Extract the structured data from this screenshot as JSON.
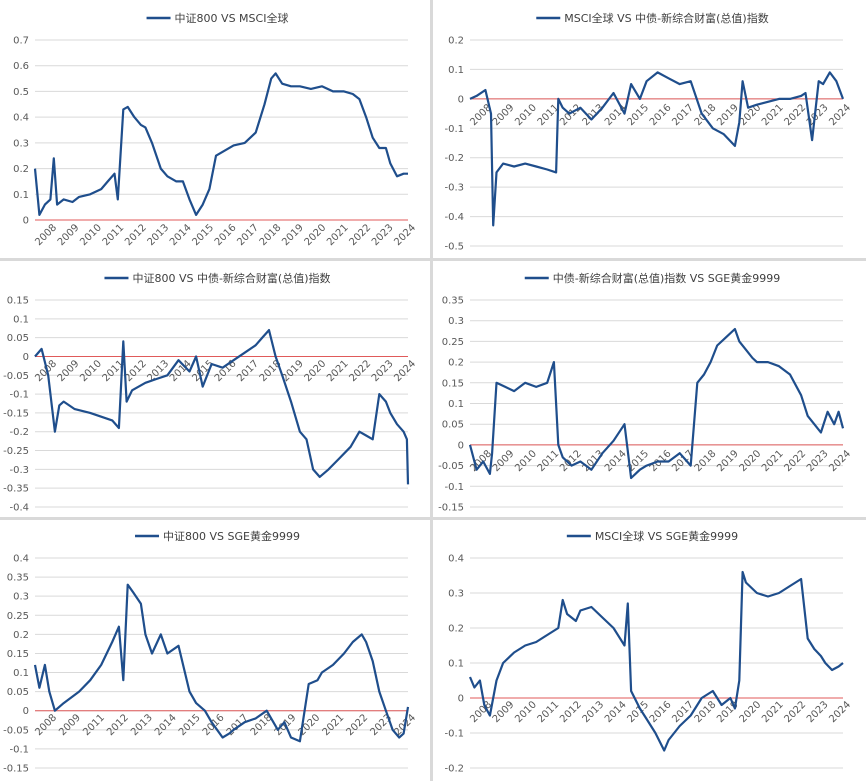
{
  "palette": {
    "series": "#1f4e8c",
    "baseline": "#e05a5a",
    "grid": "#d9d9d9",
    "text": "#595959"
  },
  "chart_data": [
    {
      "type": "line",
      "title": "",
      "legend": "top-center",
      "grid": "horizontal",
      "x_range": [
        2008,
        2024.9
      ],
      "x_ticks": [
        "2008",
        "2009",
        "2010",
        "2011",
        "2012",
        "2013",
        "2014",
        "2015",
        "2016",
        "2017",
        "2018",
        "2019",
        "2020",
        "2021",
        "2022",
        "2023",
        "2024"
      ],
      "ylim": [
        0,
        0.7
      ],
      "y_ticks": [
        "0",
        "0.1",
        "0.2",
        "0.3",
        "0.4",
        "0.5",
        "0.6",
        "0.7"
      ],
      "baseline": 0,
      "series": [
        {
          "name": "中证800 VS MSCI全球",
          "x": [
            2008.0,
            2008.2,
            2008.45,
            2008.7,
            2008.85,
            2009.0,
            2009.3,
            2009.7,
            2010.0,
            2010.5,
            2011.0,
            2011.3,
            2011.6,
            2011.75,
            2012.0,
            2012.2,
            2012.5,
            2012.8,
            2013.0,
            2013.3,
            2013.7,
            2014.0,
            2014.4,
            2014.7,
            2015.0,
            2015.3,
            2015.6,
            2015.9,
            2016.2,
            2016.6,
            2017.0,
            2017.5,
            2018.0,
            2018.4,
            2018.7,
            2018.9,
            2019.2,
            2019.6,
            2020.0,
            2020.5,
            2021.0,
            2021.5,
            2022.0,
            2022.4,
            2022.7,
            2023.0,
            2023.3,
            2023.6,
            2023.9,
            2024.1,
            2024.4,
            2024.7,
            2024.9
          ],
          "y": [
            0.2,
            0.02,
            0.06,
            0.08,
            0.24,
            0.06,
            0.08,
            0.07,
            0.09,
            0.1,
            0.12,
            0.15,
            0.18,
            0.08,
            0.43,
            0.44,
            0.4,
            0.37,
            0.36,
            0.3,
            0.2,
            0.17,
            0.15,
            0.15,
            0.08,
            0.02,
            0.06,
            0.12,
            0.25,
            0.27,
            0.29,
            0.3,
            0.34,
            0.45,
            0.55,
            0.57,
            0.53,
            0.52,
            0.52,
            0.51,
            0.52,
            0.5,
            0.5,
            0.49,
            0.47,
            0.4,
            0.32,
            0.28,
            0.28,
            0.22,
            0.17,
            0.18,
            0.18
          ]
        }
      ]
    },
    {
      "type": "line",
      "title": "",
      "legend": "top-center",
      "grid": "horizontal",
      "x_range": [
        2008,
        2024.9
      ],
      "x_ticks": [
        "2008",
        "2009",
        "2010",
        "2011",
        "2012",
        "2013",
        "2014",
        "2015",
        "2016",
        "2017",
        "2018",
        "2019",
        "2020",
        "2021",
        "2022",
        "2023",
        "2024"
      ],
      "ylim": [
        -0.5,
        0.2
      ],
      "y_ticks": [
        "-0.5",
        "-0.4",
        "-0.3",
        "-0.2",
        "-0.1",
        "0",
        "0.1",
        "0.2"
      ],
      "baseline": 0,
      "series": [
        {
          "name": "MSCI全球 VS 中债-新综合财富(总值)指数",
          "x": [
            2008.0,
            2008.3,
            2008.7,
            2008.95,
            2009.05,
            2009.2,
            2009.5,
            2010.0,
            2010.5,
            2011.0,
            2011.5,
            2011.9,
            2012.0,
            2012.2,
            2012.5,
            2013.0,
            2013.5,
            2014.0,
            2014.5,
            2015.0,
            2015.3,
            2015.7,
            2016.0,
            2016.5,
            2017.0,
            2017.5,
            2018.0,
            2018.5,
            2019.0,
            2019.5,
            2020.0,
            2020.2,
            2020.35,
            2020.6,
            2021.0,
            2021.5,
            2022.0,
            2022.5,
            2023.0,
            2023.2,
            2023.5,
            2023.8,
            2024.0,
            2024.3,
            2024.6,
            2024.9
          ],
          "y": [
            0.0,
            0.01,
            0.03,
            -0.05,
            -0.43,
            -0.25,
            -0.22,
            -0.23,
            -0.22,
            -0.23,
            -0.24,
            -0.25,
            0.0,
            -0.03,
            -0.05,
            -0.03,
            -0.07,
            -0.03,
            0.02,
            -0.05,
            0.05,
            0.0,
            0.06,
            0.09,
            0.07,
            0.05,
            0.06,
            -0.05,
            -0.1,
            -0.12,
            -0.16,
            -0.08,
            0.06,
            -0.03,
            -0.02,
            -0.01,
            0.0,
            0.0,
            0.01,
            0.02,
            -0.14,
            0.06,
            0.05,
            0.09,
            0.06,
            0.0
          ]
        }
      ]
    },
    {
      "type": "line",
      "title": "",
      "legend": "top-center",
      "grid": "horizontal",
      "x_range": [
        2008,
        2024.9
      ],
      "x_ticks": [
        "2008",
        "2009",
        "2010",
        "2011",
        "2012",
        "2013",
        "2014",
        "2015",
        "2016",
        "2017",
        "2018",
        "2019",
        "2020",
        "2021",
        "2022",
        "2023",
        "2024"
      ],
      "ylim": [
        -0.4,
        0.15
      ],
      "y_ticks": [
        "-0.4",
        "-0.35",
        "-0.3",
        "-0.25",
        "-0.2",
        "-0.15",
        "-0.1",
        "-0.05",
        "0",
        "0.05",
        "0.1",
        "0.15"
      ],
      "baseline": 0,
      "series": [
        {
          "name": "中证800 VS 中债-新综合财富(总值)指数",
          "x": [
            2008.0,
            2008.3,
            2008.6,
            2008.9,
            2009.1,
            2009.3,
            2009.8,
            2010.5,
            2011.0,
            2011.5,
            2011.8,
            2012.0,
            2012.15,
            2012.4,
            2013.0,
            2013.5,
            2014.0,
            2014.5,
            2015.0,
            2015.3,
            2015.6,
            2016.0,
            2016.5,
            2017.0,
            2017.5,
            2018.0,
            2018.3,
            2018.6,
            2018.9,
            2019.2,
            2019.6,
            2020.0,
            2020.3,
            2020.6,
            2020.9,
            2021.3,
            2021.8,
            2022.3,
            2022.7,
            2023.0,
            2023.3,
            2023.6,
            2023.9,
            2024.1,
            2024.4,
            2024.7,
            2024.85,
            2024.9
          ],
          "y": [
            0.0,
            0.02,
            -0.05,
            -0.2,
            -0.13,
            -0.12,
            -0.14,
            -0.15,
            -0.16,
            -0.17,
            -0.19,
            0.04,
            -0.12,
            -0.09,
            -0.07,
            -0.06,
            -0.05,
            -0.01,
            -0.04,
            0.0,
            -0.08,
            -0.02,
            -0.03,
            -0.01,
            0.01,
            0.03,
            0.05,
            0.07,
            0.0,
            -0.05,
            -0.12,
            -0.2,
            -0.22,
            -0.3,
            -0.32,
            -0.3,
            -0.27,
            -0.24,
            -0.2,
            -0.21,
            -0.22,
            -0.1,
            -0.12,
            -0.15,
            -0.18,
            -0.2,
            -0.22,
            -0.34
          ]
        }
      ]
    },
    {
      "type": "line",
      "title": "",
      "legend": "top-center",
      "grid": "horizontal",
      "x_range": [
        2008,
        2024.9
      ],
      "x_ticks": [
        "2008",
        "2009",
        "2010",
        "2011",
        "2012",
        "2013",
        "2014",
        "2015",
        "2016",
        "2017",
        "2018",
        "2019",
        "2020",
        "2021",
        "2022",
        "2023",
        "2024"
      ],
      "ylim": [
        -0.15,
        0.35
      ],
      "y_ticks": [
        "-0.15",
        "-0.1",
        "-0.05",
        "0",
        "0.05",
        "0.1",
        "0.15",
        "0.2",
        "0.25",
        "0.3",
        "0.35"
      ],
      "baseline": 0,
      "series": [
        {
          "name": "中债-新综合财富(总值)指数 VS SGE黄金9999",
          "x": [
            2008.0,
            2008.3,
            2008.6,
            2008.9,
            2009.0,
            2009.2,
            2009.6,
            2010.0,
            2010.5,
            2011.0,
            2011.5,
            2011.8,
            2012.0,
            2012.2,
            2012.6,
            2013.0,
            2013.5,
            2014.0,
            2014.5,
            2015.0,
            2015.3,
            2015.7,
            2016.0,
            2016.5,
            2017.0,
            2017.5,
            2018.0,
            2018.3,
            2018.6,
            2018.9,
            2019.2,
            2019.6,
            2020.0,
            2020.2,
            2020.5,
            2020.8,
            2021.0,
            2021.5,
            2022.0,
            2022.5,
            2023.0,
            2023.3,
            2023.6,
            2023.9,
            2024.2,
            2024.5,
            2024.7,
            2024.9
          ],
          "y": [
            0.0,
            -0.06,
            -0.04,
            -0.07,
            -0.02,
            0.15,
            0.14,
            0.13,
            0.15,
            0.14,
            0.15,
            0.2,
            0.0,
            -0.03,
            -0.05,
            -0.04,
            -0.06,
            -0.02,
            0.01,
            0.05,
            -0.08,
            -0.06,
            -0.05,
            -0.04,
            -0.04,
            -0.02,
            -0.05,
            0.15,
            0.17,
            0.2,
            0.24,
            0.26,
            0.28,
            0.25,
            0.23,
            0.21,
            0.2,
            0.2,
            0.19,
            0.17,
            0.12,
            0.07,
            0.05,
            0.03,
            0.08,
            0.05,
            0.08,
            0.04
          ]
        }
      ]
    },
    {
      "type": "line",
      "title": "",
      "legend": "top-center",
      "grid": "horizontal",
      "x_range": [
        2008,
        2024.9
      ],
      "x_ticks": [
        "2008",
        "2009",
        "2011",
        "2012",
        "2013",
        "2014",
        "2015",
        "2016",
        "2017",
        "2018",
        "2019",
        "2020",
        "2021",
        "2022",
        "2023",
        "2024"
      ],
      "ylim": [
        -0.15,
        0.4
      ],
      "y_ticks": [
        "-0.15",
        "-0.1",
        "-0.05",
        "0",
        "0.05",
        "0.1",
        "0.15",
        "0.2",
        "0.25",
        "0.3",
        "0.35",
        "0.4"
      ],
      "baseline": 0,
      "series": [
        {
          "name": "中证800 VS SGE黄金9999",
          "x": [
            2008.0,
            2008.2,
            2008.45,
            2008.65,
            2008.9,
            2009.3,
            2010.0,
            2010.5,
            2011.0,
            2011.5,
            2011.8,
            2012.0,
            2012.2,
            2012.45,
            2012.8,
            2013.0,
            2013.3,
            2013.7,
            2014.0,
            2014.5,
            2015.0,
            2015.3,
            2015.7,
            2016.0,
            2016.5,
            2016.8,
            2017.0,
            2017.5,
            2018.0,
            2018.5,
            2019.0,
            2019.3,
            2019.6,
            2020.0,
            2020.4,
            2020.8,
            2021.0,
            2021.5,
            2022.0,
            2022.4,
            2022.8,
            2023.0,
            2023.3,
            2023.6,
            2023.9,
            2024.2,
            2024.5,
            2024.7,
            2024.9
          ],
          "y": [
            0.12,
            0.06,
            0.12,
            0.05,
            0.0,
            0.02,
            0.05,
            0.08,
            0.12,
            0.18,
            0.22,
            0.08,
            0.33,
            0.31,
            0.28,
            0.2,
            0.15,
            0.2,
            0.15,
            0.17,
            0.05,
            0.02,
            0.0,
            -0.03,
            -0.07,
            -0.06,
            -0.05,
            -0.03,
            -0.02,
            0.0,
            -0.05,
            -0.03,
            -0.07,
            -0.08,
            0.07,
            0.08,
            0.1,
            0.12,
            0.15,
            0.18,
            0.2,
            0.18,
            0.13,
            0.05,
            0.0,
            -0.05,
            -0.07,
            -0.06,
            0.01
          ]
        }
      ]
    },
    {
      "type": "line",
      "title": "",
      "legend": "top-center",
      "grid": "horizontal",
      "x_range": [
        2008,
        2024.9
      ],
      "x_ticks": [
        "2008",
        "2009",
        "2010",
        "2011",
        "2012",
        "2013",
        "2014",
        "2015",
        "2016",
        "2017",
        "2018",
        "2019",
        "2020",
        "2021",
        "2022",
        "2023",
        "2024"
      ],
      "ylim": [
        -0.2,
        0.4
      ],
      "y_ticks": [
        "-0.2",
        "-0.1",
        "0",
        "0.1",
        "0.2",
        "0.3",
        "0.4"
      ],
      "baseline": 0,
      "series": [
        {
          "name": "MSCI全球 VS SGE黄金9999",
          "x": [
            2008.0,
            2008.2,
            2008.45,
            2008.65,
            2008.9,
            2009.2,
            2009.5,
            2010.0,
            2010.5,
            2011.0,
            2011.5,
            2012.0,
            2012.2,
            2012.4,
            2012.8,
            2013.0,
            2013.5,
            2014.0,
            2014.5,
            2015.0,
            2015.15,
            2015.3,
            2015.7,
            2016.0,
            2016.4,
            2016.8,
            2017.0,
            2017.5,
            2018.0,
            2018.5,
            2019.0,
            2019.4,
            2019.8,
            2020.0,
            2020.2,
            2020.35,
            2020.5,
            2021.0,
            2021.5,
            2022.0,
            2022.5,
            2023.0,
            2023.3,
            2023.6,
            2023.9,
            2024.1,
            2024.4,
            2024.7,
            2024.9
          ],
          "y": [
            0.06,
            0.03,
            0.05,
            -0.02,
            -0.05,
            0.05,
            0.1,
            0.13,
            0.15,
            0.16,
            0.18,
            0.2,
            0.28,
            0.24,
            0.22,
            0.25,
            0.26,
            0.23,
            0.2,
            0.15,
            0.27,
            0.02,
            -0.03,
            -0.06,
            -0.1,
            -0.15,
            -0.12,
            -0.08,
            -0.05,
            0.0,
            0.02,
            -0.02,
            0.0,
            -0.03,
            0.05,
            0.36,
            0.33,
            0.3,
            0.29,
            0.3,
            0.32,
            0.34,
            0.17,
            0.14,
            0.12,
            0.1,
            0.08,
            0.09,
            0.1
          ]
        }
      ]
    }
  ]
}
